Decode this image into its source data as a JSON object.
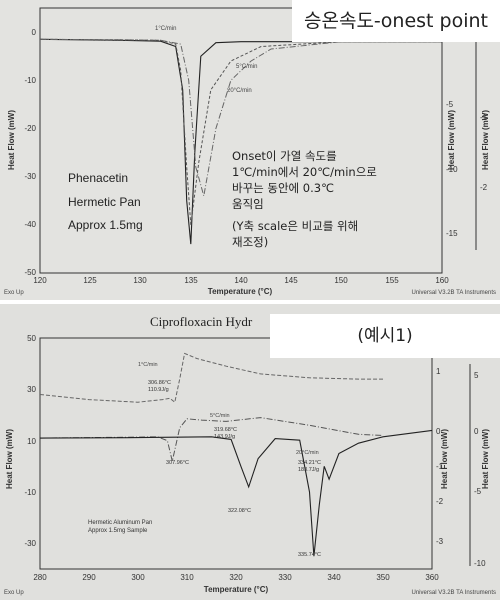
{
  "top_panel": {
    "overlay_label": "승온속도-onest point",
    "annotations": {
      "sample_name": "Phenacetin",
      "pan": "Hermetic Pan",
      "mass": "Approx 1.5mg",
      "note_lines": [
        "Onset이 가열 속도를",
        "1℃/min에서 20℃/min으로",
        "바꾸는 동안에 0.3℃",
        "움직임"
      ],
      "note_scale_lines": [
        "(Y축 scale은 비교를 위해",
        "재조정)"
      ]
    },
    "footer": {
      "exo": "Exo Up",
      "instrument": "Universal V3.2B TA Instruments"
    }
  },
  "bottom_panel": {
    "overlay_label": "(예시1)",
    "title": "Ciprofloxacin Hydr",
    "annotations": {
      "pan": "Hermetic Aluminum Pan",
      "mass": "Approx 1.5mg Sample"
    },
    "footer": {
      "exo": "Exo Up",
      "instrument": "Universal V3.2B TA Instruments"
    }
  },
  "chart_data": [
    {
      "type": "line",
      "xlabel": "Temperature (°C)",
      "ylabel": "Heat Flow (mW)",
      "right_ylabels": [
        "Heat Flow (mW)",
        "Heat Flow (mW)"
      ],
      "xlim": [
        120,
        160
      ],
      "ylim": [
        -50,
        5
      ],
      "x_ticks": [
        120,
        125,
        130,
        135,
        140,
        145,
        150,
        155,
        160
      ],
      "y_ticks": [
        0,
        -10,
        -20,
        -30,
        -40,
        -50
      ],
      "right_axis1_ticks": [
        -5,
        -10,
        -15
      ],
      "right_axis2_ticks": [
        -1,
        -2
      ],
      "series": [
        {
          "name": "1°C/min",
          "x": [
            120,
            128,
            132,
            133.5,
            134.2,
            134.6,
            135.0,
            135.4,
            136.0,
            137.5,
            140,
            150,
            160
          ],
          "y": [
            -1.5,
            -1.7,
            -1.9,
            -3,
            -12,
            -35,
            -44,
            -25,
            -5,
            -2.2,
            -2,
            -2,
            -2
          ]
        },
        {
          "name": "5°C/min",
          "x": [
            120,
            128,
            132,
            133.5,
            134.0,
            134.6,
            135.0,
            135.8,
            137,
            139,
            142,
            150,
            160
          ],
          "y": [
            -1.5,
            -1.6,
            -1.7,
            -2.5,
            -8,
            -28,
            -40,
            -27,
            -12,
            -6,
            -3,
            -2,
            -2
          ]
        },
        {
          "name": "20°C/min",
          "x": [
            120,
            128,
            132,
            134.0,
            134.8,
            135.5,
            136.3,
            137.5,
            139,
            141,
            143,
            150,
            160
          ],
          "y": [
            -1.5,
            -1.6,
            -1.7,
            -2.5,
            -10,
            -28,
            -34,
            -20,
            -10,
            -6,
            -3.5,
            -2,
            -2
          ]
        }
      ]
    },
    {
      "type": "line",
      "xlabel": "Temperature (°C)",
      "ylabel": "Heat Flow (mW)",
      "right_ylabels": [
        "Heat Flow (mW)",
        "Heat Flow (mW)"
      ],
      "xlim": [
        280,
        360
      ],
      "ylim": [
        -40,
        50
      ],
      "x_ticks": [
        280,
        290,
        300,
        310,
        320,
        330,
        340,
        350,
        360
      ],
      "y_ticks": [
        50,
        30,
        10,
        -10,
        -30
      ],
      "right_axis1_ticks": [
        1,
        0,
        -1,
        -2,
        -3
      ],
      "right_axis2_ticks": [
        5,
        0,
        -5,
        -10
      ],
      "series": [
        {
          "name": "1°C/min",
          "x": [
            280,
            290,
            300,
            305,
            306.5,
            307.5,
            308.5,
            309.5,
            312,
            318,
            325,
            335,
            345,
            350
          ],
          "y": [
            28,
            26,
            25,
            26,
            26.5,
            25,
            34,
            44,
            42,
            39,
            36,
            34.5,
            34,
            34
          ]
        },
        {
          "name": "5°C/min",
          "x": [
            280,
            290,
            300,
            304,
            306,
            307,
            308.5,
            310,
            313,
            318,
            325,
            335,
            345,
            350
          ],
          "y": [
            11,
            11.2,
            11.4,
            11.5,
            10,
            2,
            15,
            18.5,
            18,
            17.5,
            19,
            16,
            12.5,
            12
          ]
        },
        {
          "name": "20°C/min",
          "x": [
            280,
            300,
            315,
            319,
            321,
            322.6,
            324.5,
            328,
            333,
            335,
            335.9,
            337,
            338,
            339,
            341,
            345,
            350,
            360
          ],
          "y": [
            11,
            11.2,
            11.5,
            10.5,
            0,
            -8,
            3,
            10.8,
            10.2,
            -10,
            -35,
            -15,
            0,
            -5,
            5,
            9,
            11.5,
            14
          ]
        }
      ],
      "annotations": [
        {
          "text": "306.86°C",
          "text2": "110.9J/g",
          "x": 306.86
        },
        {
          "text": "307.96°C",
          "x": 307.96
        },
        {
          "text": "319.68°C",
          "text2": "143.9J/g",
          "x": 319.68
        },
        {
          "text": "322.08°C",
          "x": 322.08
        },
        {
          "text": "334.21°C",
          "text2": "183.7J/g",
          "x": 334.21
        },
        {
          "text": "335.74°C",
          "x": 335.74
        }
      ]
    }
  ]
}
